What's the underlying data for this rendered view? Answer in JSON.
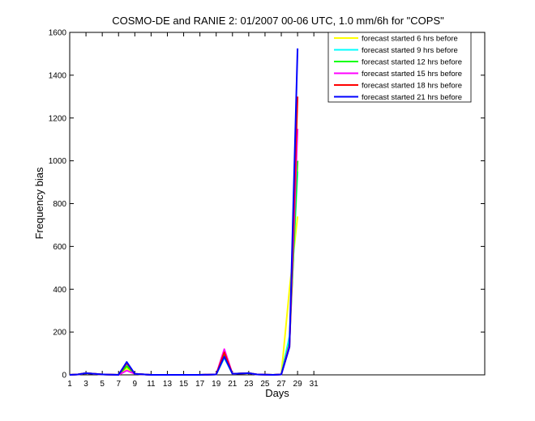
{
  "chart_data": {
    "type": "line",
    "title": "COSMO-DE and RANIE 2: 01/2007 00-06 UTC, 1.0 mm/6h for \"COPS\"",
    "xlabel": "Days",
    "ylabel": "Frequency bias",
    "xlim": [
      1,
      52
    ],
    "ylim": [
      0,
      1600
    ],
    "xticks": [
      1,
      3,
      5,
      7,
      9,
      11,
      13,
      15,
      17,
      19,
      21,
      23,
      25,
      27,
      29,
      31
    ],
    "yticks": [
      0,
      200,
      400,
      600,
      800,
      1000,
      1200,
      1400,
      1600
    ],
    "legend_position": "top-right",
    "series": [
      {
        "name": "forecast started  6 hrs before",
        "color": "#ffff00",
        "x": [
          1,
          2,
          3,
          5,
          7,
          8,
          9,
          11,
          17,
          19,
          20,
          21,
          23,
          24,
          26,
          27,
          28,
          29
        ],
        "y": [
          0,
          2,
          8,
          2,
          0,
          30,
          5,
          0,
          0,
          2,
          80,
          5,
          8,
          2,
          0,
          2,
          400,
          740
        ]
      },
      {
        "name": "forecast started  9 hrs before",
        "color": "#00ffff",
        "x": [
          1,
          2,
          3,
          5,
          7,
          8,
          9,
          11,
          17,
          19,
          20,
          21,
          23,
          24,
          26,
          27,
          28,
          29
        ],
        "y": [
          0,
          2,
          8,
          2,
          0,
          50,
          5,
          0,
          0,
          2,
          80,
          5,
          8,
          2,
          0,
          2,
          180,
          950
        ]
      },
      {
        "name": "forecast started 12 hrs before",
        "color": "#00ff00",
        "x": [
          1,
          2,
          3,
          5,
          7,
          8,
          9,
          11,
          17,
          19,
          20,
          21,
          23,
          24,
          26,
          27,
          28,
          29
        ],
        "y": [
          0,
          2,
          8,
          2,
          0,
          40,
          5,
          0,
          0,
          2,
          95,
          5,
          8,
          2,
          0,
          2,
          150,
          1000
        ]
      },
      {
        "name": "forecast started 15 hrs before",
        "color": "#ff00ff",
        "x": [
          1,
          2,
          3,
          5,
          7,
          8,
          9,
          11,
          17,
          19,
          20,
          21,
          23,
          24,
          26,
          27,
          28,
          29
        ],
        "y": [
          0,
          2,
          8,
          2,
          0,
          20,
          5,
          0,
          0,
          2,
          120,
          5,
          8,
          2,
          0,
          2,
          140,
          1150
        ]
      },
      {
        "name": "forecast started 18 hrs before",
        "color": "#ff0000",
        "x": [
          1,
          2,
          3,
          5,
          7,
          8,
          9,
          11,
          17,
          19,
          20,
          21,
          23,
          24,
          26,
          27,
          28,
          29
        ],
        "y": [
          0,
          2,
          8,
          2,
          0,
          55,
          5,
          0,
          0,
          2,
          105,
          5,
          8,
          2,
          0,
          2,
          130,
          1300
        ]
      },
      {
        "name": "forecast started 21 hrs before",
        "color": "#0000ff",
        "x": [
          1,
          2,
          3,
          5,
          7,
          8,
          9,
          11,
          17,
          19,
          20,
          21,
          23,
          24,
          26,
          27,
          28,
          29
        ],
        "y": [
          0,
          2,
          8,
          2,
          0,
          60,
          5,
          0,
          0,
          2,
          85,
          5,
          8,
          2,
          0,
          2,
          130,
          1525
        ]
      }
    ]
  }
}
